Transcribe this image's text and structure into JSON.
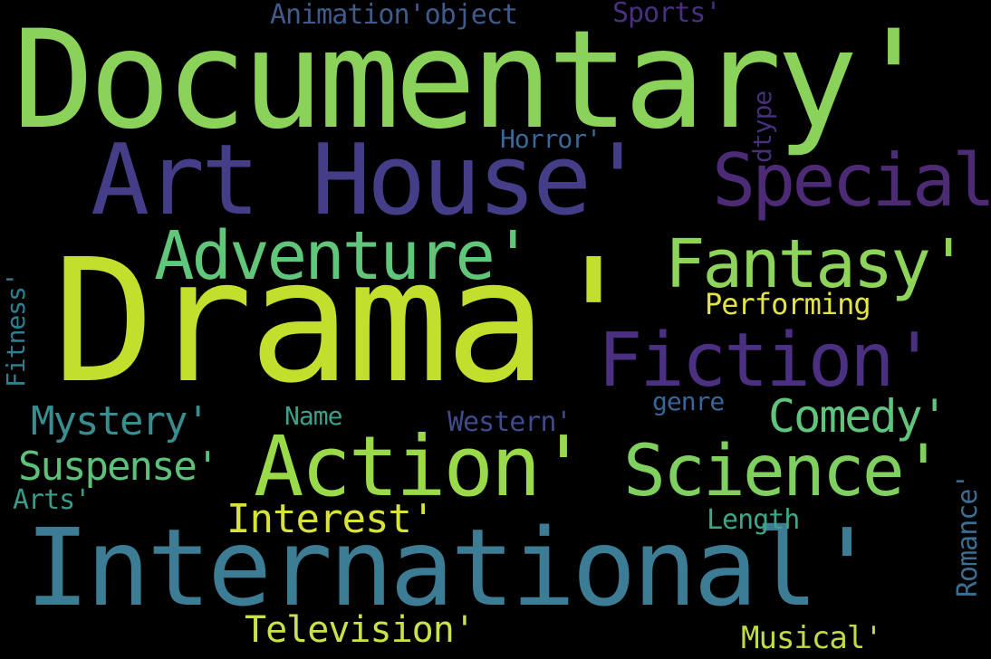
{
  "words": [
    {
      "key": "drama",
      "text": "Drama'",
      "color": "#c2df2e"
    },
    {
      "key": "documentary",
      "text": "Documentary'",
      "color": "#8ad25a"
    },
    {
      "key": "international",
      "text": "International'",
      "color": "#3c7c94"
    },
    {
      "key": "art-house",
      "text": "Art House'",
      "color": "#443e88"
    },
    {
      "key": "action",
      "text": "Action'",
      "color": "#9ad94a"
    },
    {
      "key": "science",
      "text": "Science'",
      "color": "#7fd05f"
    },
    {
      "key": "special",
      "text": "Special",
      "color": "#4d2a76"
    },
    {
      "key": "adventure",
      "text": "Adventure'",
      "color": "#5fc67a"
    },
    {
      "key": "fantasy",
      "text": "Fantasy'",
      "color": "#8ed45a"
    },
    {
      "key": "fiction",
      "text": "Fiction'",
      "color": "#4b2f80"
    },
    {
      "key": "comedy",
      "text": "Comedy'",
      "color": "#61c47d"
    },
    {
      "key": "mystery",
      "text": "Mystery'",
      "color": "#3a8d8f"
    },
    {
      "key": "suspense",
      "text": "Suspense'",
      "color": "#5cc27a"
    },
    {
      "key": "interest",
      "text": "Interest'",
      "color": "#d8e33a"
    },
    {
      "key": "television",
      "text": "Television'",
      "color": "#cbe14a"
    },
    {
      "key": "performing",
      "text": "Performing",
      "color": "#e2e344"
    },
    {
      "key": "musical",
      "text": "Musical'",
      "color": "#bfdc45"
    },
    {
      "key": "animation-object",
      "text": "Animation'object",
      "color": "#3f5b8c"
    },
    {
      "key": "sports",
      "text": "Sports'",
      "color": "#4a2f80"
    },
    {
      "key": "horror",
      "text": "Horror'",
      "color": "#39699a"
    },
    {
      "key": "dtype",
      "text": "dtype",
      "color": "#472f7c"
    },
    {
      "key": "name",
      "text": "Name",
      "color": "#3ca08a"
    },
    {
      "key": "western",
      "text": "Western'",
      "color": "#3e4a89"
    },
    {
      "key": "genre",
      "text": "genre",
      "color": "#38669a"
    },
    {
      "key": "length",
      "text": "Length",
      "color": "#3da688"
    },
    {
      "key": "arts",
      "text": "Arts'",
      "color": "#3a9a8a"
    },
    {
      "key": "fitness",
      "text": "Fitness'",
      "color": "#2e7f92"
    },
    {
      "key": "romance",
      "text": "Romance'",
      "color": "#3a6e92"
    }
  ]
}
